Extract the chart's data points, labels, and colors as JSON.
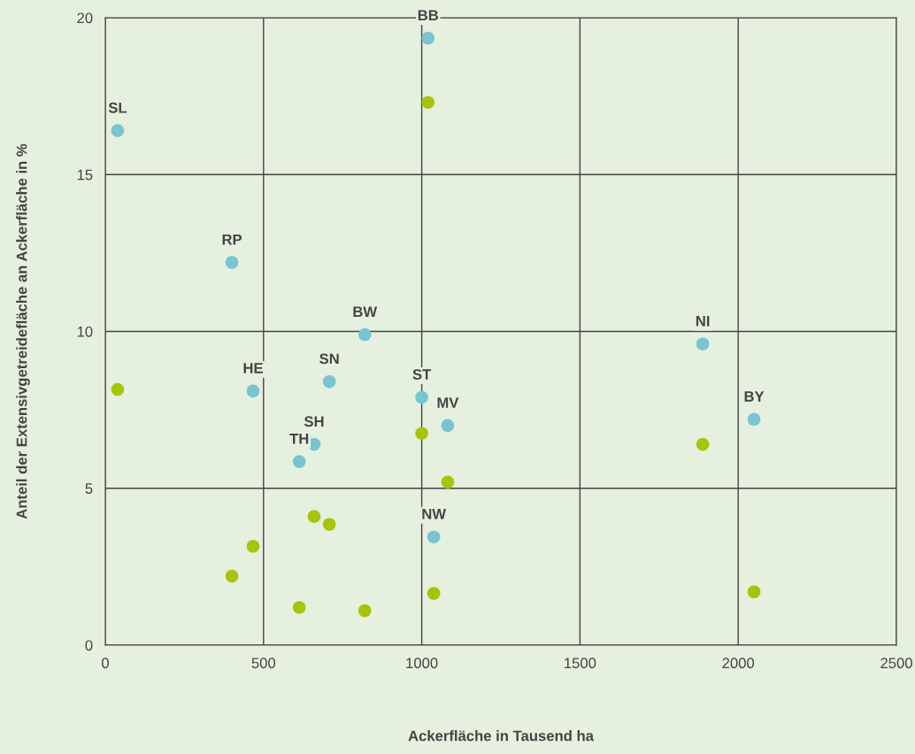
{
  "chart_data": {
    "type": "scatter",
    "xlabel": "Ackerfläche in Tausend ha",
    "ylabel": "Anteil der Extensivgetreidefläche an Ackerfläche in %",
    "x": [
      39,
      1020,
      400,
      820,
      467,
      708,
      1000,
      1082,
      660,
      613,
      1038,
      1888,
      2050
    ],
    "series": [
      {
        "color": "#78c4d2",
        "values": [
          16.4,
          19.35,
          12.2,
          9.9,
          8.1,
          8.4,
          7.9,
          7.0,
          6.4,
          5.85,
          3.45,
          9.6,
          7.2
        ]
      },
      {
        "color": "#a8c40a",
        "values": [
          8.15,
          17.3,
          2.2,
          1.1,
          3.15,
          3.85,
          6.75,
          5.2,
          4.1,
          1.2,
          1.65,
          6.4,
          1.7
        ]
      }
    ],
    "annotations": [
      {
        "text": "SL",
        "x": 39,
        "y": 16.4
      },
      {
        "text": "BB",
        "x": 1020,
        "y": 19.35
      },
      {
        "text": "RP",
        "x": 400,
        "y": 12.2
      },
      {
        "text": "BW",
        "x": 820,
        "y": 9.9
      },
      {
        "text": "HE",
        "x": 467,
        "y": 8.1
      },
      {
        "text": "SN",
        "x": 708,
        "y": 8.4
      },
      {
        "text": "ST",
        "x": 1000,
        "y": 7.9
      },
      {
        "text": "MV",
        "x": 1082,
        "y": 7.0
      },
      {
        "text": "SH",
        "x": 660,
        "y": 6.4
      },
      {
        "text": "TH",
        "x": 613,
        "y": 5.85
      },
      {
        "text": "NW",
        "x": 1038,
        "y": 3.45
      },
      {
        "text": "NI",
        "x": 1888,
        "y": 9.6
      },
      {
        "text": "BY",
        "x": 2050,
        "y": 7.2
      }
    ],
    "xlim": [
      0,
      2500
    ],
    "ylim": [
      0,
      20
    ],
    "xticks": [
      0,
      500,
      1000,
      1500,
      2000,
      2500
    ],
    "yticks": [
      0,
      5,
      10,
      15,
      20
    ],
    "grid": true,
    "marker": "circle",
    "legend": false
  }
}
